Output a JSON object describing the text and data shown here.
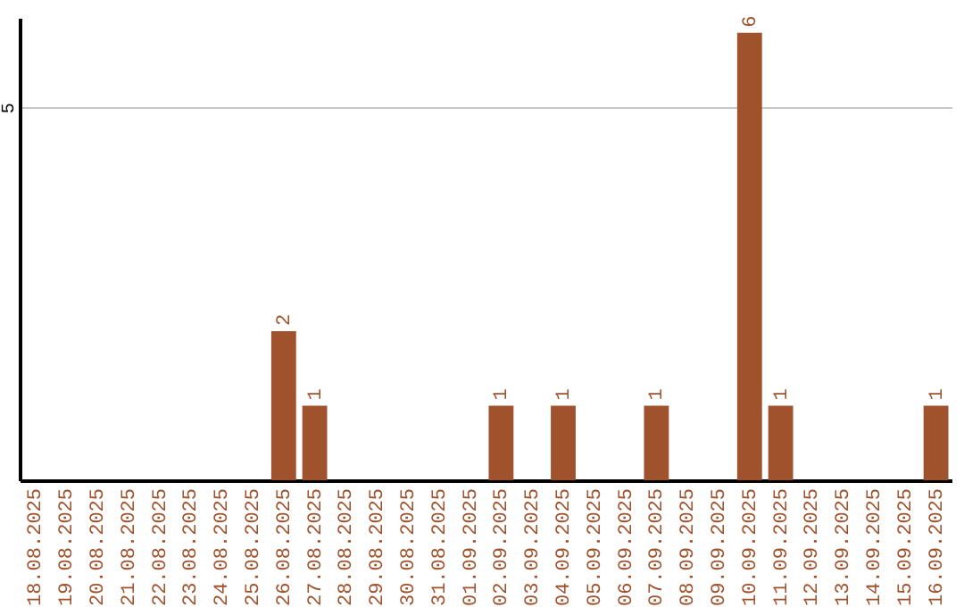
{
  "chart_data": {
    "type": "bar",
    "categories": [
      "18.08.2025",
      "19.08.2025",
      "20.08.2025",
      "21.08.2025",
      "22.08.2025",
      "23.08.2025",
      "24.08.2025",
      "25.08.2025",
      "26.08.2025",
      "27.08.2025",
      "28.08.2025",
      "29.08.2025",
      "30.08.2025",
      "31.08.2025",
      "01.09.2025",
      "02.09.2025",
      "03.09.2025",
      "04.09.2025",
      "05.09.2025",
      "06.09.2025",
      "07.09.2025",
      "08.09.2025",
      "09.09.2025",
      "10.09.2025",
      "11.09.2025",
      "12.09.2025",
      "13.09.2025",
      "14.09.2025",
      "15.09.2025",
      "16.09.2025"
    ],
    "values": [
      0,
      0,
      0,
      0,
      0,
      0,
      0,
      0,
      2,
      1,
      0,
      0,
      0,
      0,
      0,
      1,
      0,
      1,
      0,
      0,
      1,
      0,
      0,
      6,
      1,
      0,
      0,
      0,
      0,
      1
    ],
    "value_labels": [
      null,
      null,
      null,
      null,
      null,
      null,
      null,
      null,
      "2",
      "1",
      null,
      null,
      null,
      null,
      null,
      "1",
      null,
      "1",
      null,
      null,
      "1",
      null,
      null,
      "6",
      "1",
      null,
      null,
      null,
      null,
      "1"
    ],
    "color": "#a0522d",
    "ylim": [
      0,
      6.2
    ],
    "yticks": [
      5
    ],
    "grid": "y"
  }
}
